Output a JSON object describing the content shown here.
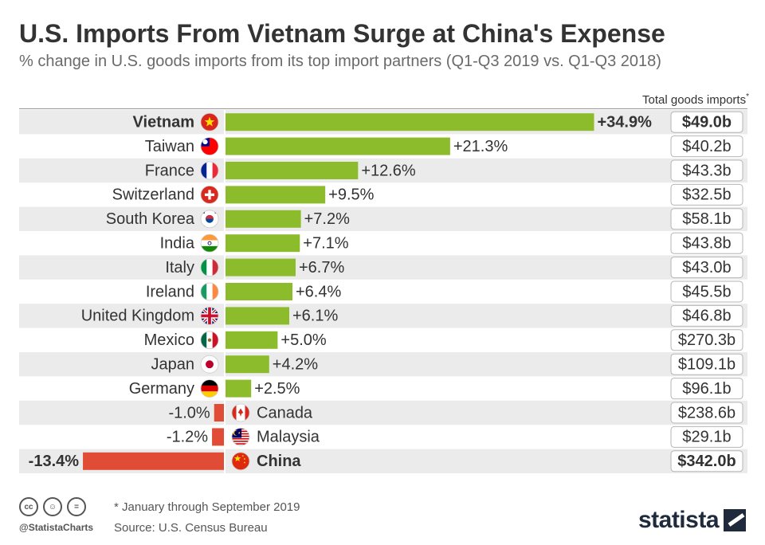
{
  "title": "U.S. Imports From Vietnam Surge at China's Expense",
  "subtitle": "% change in U.S. goods imports from its top import partners (Q1-Q3 2019 vs. Q1-Q3 2018)",
  "totals_header": "Total goods imports",
  "totals_header_mark": "*",
  "colors": {
    "positive": "#8cbc2c",
    "negative": "#e04c36",
    "stripe": "#ebebeb",
    "text": "#333333"
  },
  "chart_data": {
    "type": "bar",
    "orientation": "horizontal",
    "title": "U.S. Imports From Vietnam Surge at China's Expense",
    "xlabel": "% change in U.S. goods imports",
    "ylabel": "",
    "xlim": [
      -13.4,
      34.9
    ],
    "rows": [
      {
        "country": "Vietnam",
        "value": 34.9,
        "label": "+34.9%",
        "total": "$49.0b",
        "highlight": true,
        "flag": "vietnam-flag-icon"
      },
      {
        "country": "Taiwan",
        "value": 21.3,
        "label": "+21.3%",
        "total": "$40.2b",
        "highlight": false,
        "flag": "taiwan-flag-icon"
      },
      {
        "country": "France",
        "value": 12.6,
        "label": "+12.6%",
        "total": "$43.3b",
        "highlight": false,
        "flag": "france-flag-icon"
      },
      {
        "country": "Switzerland",
        "value": 9.5,
        "label": "+9.5%",
        "total": "$32.5b",
        "highlight": false,
        "flag": "switzerland-flag-icon"
      },
      {
        "country": "South Korea",
        "value": 7.2,
        "label": "+7.2%",
        "total": "$58.1b",
        "highlight": false,
        "flag": "south-korea-flag-icon"
      },
      {
        "country": "India",
        "value": 7.1,
        "label": "+7.1%",
        "total": "$43.8b",
        "highlight": false,
        "flag": "india-flag-icon"
      },
      {
        "country": "Italy",
        "value": 6.7,
        "label": "+6.7%",
        "total": "$43.0b",
        "highlight": false,
        "flag": "italy-flag-icon"
      },
      {
        "country": "Ireland",
        "value": 6.4,
        "label": "+6.4%",
        "total": "$45.5b",
        "highlight": false,
        "flag": "ireland-flag-icon"
      },
      {
        "country": "United Kingdom",
        "value": 6.1,
        "label": "+6.1%",
        "total": "$46.8b",
        "highlight": false,
        "flag": "united-kingdom-flag-icon"
      },
      {
        "country": "Mexico",
        "value": 5.0,
        "label": "+5.0%",
        "total": "$270.3b",
        "highlight": false,
        "flag": "mexico-flag-icon"
      },
      {
        "country": "Japan",
        "value": 4.2,
        "label": "+4.2%",
        "total": "$109.1b",
        "highlight": false,
        "flag": "japan-flag-icon"
      },
      {
        "country": "Germany",
        "value": 2.5,
        "label": "+2.5%",
        "total": "$96.1b",
        "highlight": false,
        "flag": "germany-flag-icon"
      },
      {
        "country": "Canada",
        "value": -1.0,
        "label": "-1.0%",
        "total": "$238.6b",
        "highlight": false,
        "flag": "canada-flag-icon"
      },
      {
        "country": "Malaysia",
        "value": -1.2,
        "label": "-1.2%",
        "total": "$29.1b",
        "highlight": false,
        "flag": "malaysia-flag-icon"
      },
      {
        "country": "China",
        "value": -13.4,
        "label": "-13.4%",
        "total": "$342.0b",
        "highlight": true,
        "flag": "china-flag-icon"
      }
    ]
  },
  "footer": {
    "note": "* January through September 2019",
    "source": "Source: U.S. Census Bureau",
    "handle": "@StatistaCharts",
    "logo": "statista"
  }
}
